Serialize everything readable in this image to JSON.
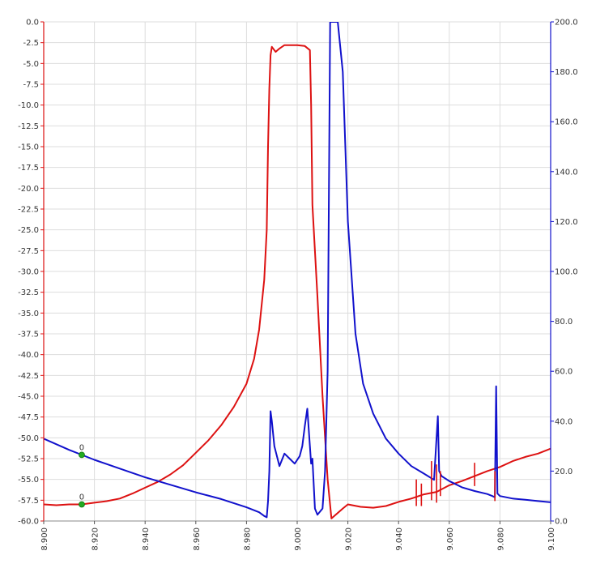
{
  "chart_data": {
    "type": "line",
    "title": "",
    "xlabel": "",
    "ylabel": "",
    "y2label": "",
    "xlim": [
      8.9,
      9.1
    ],
    "ylim": [
      -60,
      0
    ],
    "y2lim": [
      0,
      200
    ],
    "x_ticks": [
      "8.900",
      "8.920",
      "8.940",
      "8.960",
      "8.980",
      "9.000",
      "9.020",
      "9.040",
      "9.060",
      "9.080",
      "9.100"
    ],
    "y_ticks": [
      "0.0",
      "-2.5",
      "-5.0",
      "-7.5",
      "-10.0",
      "-12.5",
      "-15.0",
      "-17.5",
      "-20.0",
      "-22.5",
      "-25.0",
      "-27.5",
      "-30.0",
      "-32.5",
      "-35.0",
      "-37.5",
      "-40.0",
      "-42.5",
      "-45.0",
      "-47.5",
      "-50.0",
      "-52.5",
      "-55.0",
      "-57.5",
      "-60.0"
    ],
    "y2_ticks": [
      "200.0",
      "180.0",
      "160.0",
      "140.0",
      "120.0",
      "100.0",
      "80.0",
      "60.0",
      "40.0",
      "20.0",
      "0.0"
    ],
    "grid": true,
    "colors": {
      "series_left": "#dd1111",
      "series_right": "#1111cc",
      "grid": "#dddddd",
      "marker": "#22aa22"
    },
    "series": [
      {
        "axis": "left",
        "color": "#dd1111",
        "x": [
          8.9,
          8.905,
          8.91,
          8.915,
          8.92,
          8.925,
          8.93,
          8.935,
          8.94,
          8.945,
          8.95,
          8.955,
          8.96,
          8.965,
          8.97,
          8.975,
          8.98,
          8.983,
          8.985,
          8.987,
          8.988,
          8.9885,
          8.989,
          8.9895,
          8.99,
          8.9915,
          8.993,
          8.995,
          9.0,
          9.003,
          9.005,
          9.0055,
          9.006,
          9.008,
          9.01,
          9.012,
          9.0135,
          9.015,
          9.018,
          9.02,
          9.025,
          9.03,
          9.035,
          9.04,
          9.045,
          9.05,
          9.055,
          9.06,
          9.065,
          9.07,
          9.075,
          9.08,
          9.085,
          9.09,
          9.095,
          9.1
        ],
        "y": [
          -58.0,
          -58.1,
          -58.0,
          -58.0,
          -57.8,
          -57.6,
          -57.3,
          -56.7,
          -56.0,
          -55.3,
          -54.4,
          -53.3,
          -51.8,
          -50.3,
          -48.5,
          -46.3,
          -43.5,
          -40.5,
          -37.0,
          -31.0,
          -25.0,
          -15.0,
          -8.0,
          -4.0,
          -3.0,
          -3.6,
          -3.2,
          -2.8,
          -2.8,
          -2.9,
          -3.4,
          -10.0,
          -22.0,
          -33.0,
          -45.0,
          -55.0,
          -59.7,
          -59.3,
          -58.5,
          -58.0,
          -58.3,
          -58.4,
          -58.2,
          -57.7,
          -57.3,
          -56.8,
          -56.5,
          -55.7,
          -55.2,
          -54.6,
          -54.0,
          -53.5,
          -52.8,
          -52.3,
          -51.9,
          -51.3
        ]
      },
      {
        "axis": "right",
        "color": "#1111cc",
        "x": [
          8.9,
          8.91,
          8.92,
          8.93,
          8.94,
          8.95,
          8.96,
          8.97,
          8.98,
          8.985,
          8.987,
          8.988,
          8.9885,
          8.989,
          8.9895,
          8.99,
          8.991,
          8.993,
          8.995,
          8.997,
          8.998,
          8.999,
          9.001,
          9.002,
          9.003,
          9.004,
          9.005,
          9.0055,
          9.006,
          9.007,
          9.008,
          9.01,
          9.011,
          9.012,
          9.013,
          9.016,
          9.018,
          9.02,
          9.023,
          9.026,
          9.03,
          9.035,
          9.04,
          9.045,
          9.05,
          9.054,
          9.0555,
          9.056,
          9.057,
          9.06,
          9.065,
          9.07,
          9.075,
          9.077,
          9.078,
          9.0785,
          9.079,
          9.08,
          9.085,
          9.09,
          9.095,
          9.1
        ],
        "y": [
          33.0,
          28.5,
          24.5,
          21.0,
          17.5,
          14.5,
          11.5,
          8.8,
          5.5,
          3.5,
          2.0,
          1.5,
          8.0,
          20.0,
          44.0,
          40.0,
          30.0,
          22.0,
          27.0,
          25.0,
          24.0,
          23.0,
          26.0,
          30.0,
          38.0,
          45.0,
          30.0,
          23.0,
          25.0,
          5.0,
          2.5,
          5.0,
          20.0,
          60.0,
          200.0,
          200.0,
          180.0,
          120.0,
          75.0,
          55.0,
          43.0,
          33.0,
          27.0,
          22.0,
          19.0,
          16.5,
          42.0,
          20.0,
          18.0,
          16.0,
          13.5,
          12.0,
          10.8,
          10.0,
          9.5,
          54.0,
          11.0,
          10.0,
          9.0,
          8.5,
          8.0,
          7.5
        ]
      }
    ],
    "spikes": [
      {
        "axis": "left",
        "x": 9.047,
        "y1": -58.2,
        "y2": -55.0
      },
      {
        "axis": "left",
        "x": 9.049,
        "y1": -58.2,
        "y2": -55.5
      },
      {
        "axis": "left",
        "x": 9.053,
        "y1": -57.5,
        "y2": -52.8
      },
      {
        "axis": "left",
        "x": 9.055,
        "y1": -57.8,
        "y2": -53.2
      },
      {
        "axis": "left",
        "x": 9.0565,
        "y1": -57.0,
        "y2": -54.0
      },
      {
        "axis": "left",
        "x": 9.07,
        "y1": -55.8,
        "y2": -53.0
      },
      {
        "axis": "left",
        "x": 9.078,
        "y1": -57.6,
        "y2": -54.0
      }
    ],
    "markers": [
      {
        "axis": "right",
        "x": 8.915,
        "y": 26.5,
        "label": "0"
      },
      {
        "axis": "left",
        "x": 8.915,
        "y": -58.0,
        "label": "0"
      }
    ]
  }
}
